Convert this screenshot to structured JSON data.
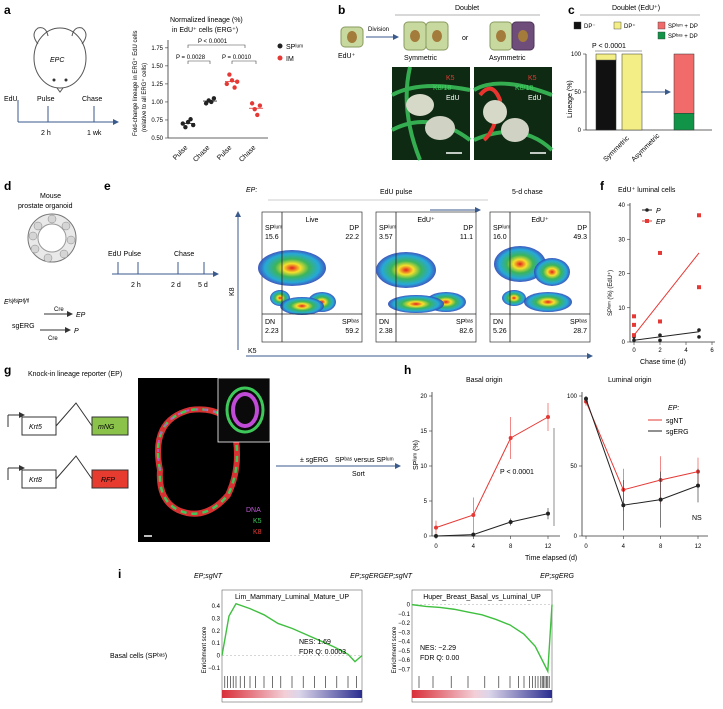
{
  "panels": {
    "a": {
      "label": "a",
      "schematic": {
        "mouse_label": "EPC",
        "timeline": [
          "EdU",
          "Pulse",
          "Chase"
        ],
        "times": [
          "2 h",
          "1 wk"
        ]
      },
      "chart_title": "Normalized lineage (%)",
      "chart_subtitle": "in EdU⁺ cells (ERG⁺)",
      "ylabel": "Fold-change lineage in ERG⁺ EdU cells",
      "ylabel2": "(relative to all ERG⁺ cells)",
      "pvals": [
        "P < 0.0001",
        "P = 0.0028",
        "P = 0.0010"
      ],
      "legend": [
        "SPˡᵘᵐ",
        "IM"
      ],
      "ticks": [
        "0.50",
        "0.75",
        "1.00",
        "1.25",
        "1.50",
        "1.75"
      ]
    },
    "b": {
      "label": "b",
      "title": "Doublet",
      "division": "Division",
      "edu": "EdU⁺",
      "symmetric": "Symmetric",
      "or": "or",
      "asymmetric": "Asymmetric",
      "stain": [
        "K5",
        "K8/18",
        "EdU"
      ]
    },
    "c": {
      "label": "c",
      "title": "Doublet (EdU⁺)",
      "legend": [
        "DP⁻",
        "DP⁺",
        "SPˡᵘᵐ + DP",
        "SPᵇᵃˢ + DP"
      ],
      "pval": "P < 0.0001",
      "ylabel": "Lineage (%)",
      "ticks": [
        "0",
        "50",
        "100"
      ],
      "categories": [
        "Symmetric",
        "Asymmetric"
      ]
    },
    "d": {
      "label": "d",
      "title": "Mouse",
      "title2": "prostate organoid",
      "timeline": [
        "EdU Pulse",
        "Chase"
      ],
      "times": [
        "2 h",
        "2 d",
        "5 d"
      ],
      "genotype": "Eˡˢˡ/ˡˢˡPᶠˡ/ᶠˡ",
      "cre": "Cre",
      "ep": "EP",
      "sgerg": "sgERG",
      "p": "P"
    },
    "e": {
      "label": "e",
      "ep": "EP:",
      "pulse": "EdU pulse",
      "chase": "5-d chase",
      "xlabel": "K5",
      "ylabel": "K8",
      "plots": [
        {
          "title": "Live",
          "splum": "15.6",
          "dp": "22.2",
          "dn": "2.23",
          "spbas": "59.2"
        },
        {
          "title": "EdU⁺",
          "splum": "3.57",
          "dp": "11.1",
          "dn": "2.38",
          "spbas": "82.6"
        },
        {
          "title": "EdU⁺",
          "splum": "16.0",
          "dp": "49.3",
          "dn": "5.26",
          "spbas": "28.7"
        }
      ],
      "q_labels": {
        "splum": "SPˡᵘᵐ",
        "dp": "DP",
        "dn": "DN",
        "spbas": "SPᵇᵃˢ"
      }
    },
    "f": {
      "label": "f",
      "title": "EdU⁺ luminal cells",
      "legend": [
        "P",
        "EP"
      ],
      "ylabel": "SPˡᵘᵐ (%) (EdU⁺)",
      "xlabel": "Chase time (d)",
      "yticks": [
        "0",
        "10",
        "20",
        "30",
        "40"
      ],
      "xticks": [
        "0",
        "2",
        "4",
        "6"
      ]
    },
    "g": {
      "label": "g",
      "title": "Knock-in lineage reporter (EP)",
      "genes": [
        "Krt5",
        "mNG",
        "Krt8",
        "RFP"
      ],
      "stain": [
        "DNA",
        "K5",
        "K8"
      ],
      "arrow1": "± sgERG",
      "arrow2": "SPᵇᵃˢ versus SPˡᵘᵐ",
      "arrow3": "Sort"
    },
    "h": {
      "label": "h",
      "basal": "Basal origin",
      "luminal": "Luminal origin",
      "ylabel": "SPˡᵘᵐ (%)",
      "xlabel": "Time elapsed (d)",
      "pval": "P < 0.0001",
      "ns": "NS",
      "legend_title": "EP:",
      "legend": [
        "sgNT",
        "sgERG"
      ],
      "ticks_left": [
        "0",
        "5",
        "10",
        "15",
        "20"
      ],
      "ticks_right": [
        "0",
        "50",
        "100"
      ],
      "xticks": [
        "0",
        "4",
        "8",
        "12"
      ]
    },
    "i": {
      "label": "i",
      "row_label": "Basal cells (SPᵇᵃˢ)",
      "ylabel": "Enrichment score",
      "plots": [
        {
          "left": "EP;sgNT",
          "right": "EP;sgERG",
          "title": "Lim_Mammary_Luminal_Mature_UP",
          "nes": "NES: 1.69",
          "fdr": "FDR Q: 0.0003",
          "ticks": [
            "0.4",
            "0.3",
            "0.2",
            "0.1",
            "0",
            "−0.1"
          ]
        },
        {
          "left": "EP;sgNT",
          "right": "EP;sgERG",
          "title": "Huper_Breast_Basal_vs_Luminal_UP",
          "nes": "NES: −2.29",
          "fdr": "FDR Q: 0.00",
          "ticks": [
            "0",
            "−0.1",
            "−0.2",
            "−0.3",
            "−0.4",
            "−0.5",
            "−0.6",
            "−0.7"
          ]
        }
      ]
    }
  },
  "chart_data": [
    {
      "type": "scatter",
      "panel": "a",
      "title": "Normalized lineage (%)",
      "categories": [
        "Pulse",
        "Chase",
        "Pulse",
        "Chase"
      ],
      "ylim": [
        0.5,
        1.75
      ],
      "series": [
        {
          "name": "SPˡᵘᵐ",
          "color": "#222222",
          "groups": [
            0,
            1
          ],
          "values": [
            [
              0.7,
              0.65,
              0.72,
              0.76,
              0.68
            ],
            [
              0.98,
              1.02,
              1.0,
              1.05
            ]
          ]
        },
        {
          "name": "IM",
          "color": "#e53935",
          "groups": [
            2,
            3
          ],
          "values": [
            [
              1.25,
              1.38,
              1.3,
              1.2,
              1.28
            ],
            [
              0.98,
              0.9,
              0.82,
              0.95
            ]
          ]
        }
      ]
    },
    {
      "type": "bar",
      "panel": "c",
      "title": "Doublet (EdU⁺)",
      "categories": [
        "Symmetric",
        "Asymmetric",
        ""
      ],
      "ylim": [
        0,
        100
      ],
      "series": [
        {
          "name": "DP⁻",
          "color": "#111111",
          "values": [
            92,
            0,
            0
          ]
        },
        {
          "name": "DP⁺",
          "color": "#f3ee86",
          "values": [
            8,
            100,
            0
          ]
        },
        {
          "name": "SPᵇᵃˢ + DP",
          "color": "#119447",
          "values": [
            0,
            0,
            22
          ]
        },
        {
          "name": "SPˡᵘᵐ + DP",
          "color": "#f16b6b",
          "values": [
            0,
            0,
            78
          ]
        }
      ]
    },
    {
      "type": "scatter",
      "panel": "f",
      "title": "EdU⁺ luminal cells",
      "xlabel": "Chase time (d)",
      "xlim": [
        0,
        6
      ],
      "ylim": [
        0,
        40
      ],
      "series": [
        {
          "name": "P",
          "color": "#222222",
          "points": [
            [
              0,
              0.5
            ],
            [
              0,
              1.5
            ],
            [
              2,
              0.5
            ],
            [
              2,
              2
            ],
            [
              5,
              1.5
            ],
            [
              5,
              3.5
            ]
          ],
          "fit": [
            [
              0,
              0.5
            ],
            [
              5,
              3
            ]
          ]
        },
        {
          "name": "EP",
          "color": "#e53935",
          "points": [
            [
              0,
              2
            ],
            [
              0,
              5
            ],
            [
              0,
              7.5
            ],
            [
              2,
              6
            ],
            [
              2,
              26
            ],
            [
              5,
              16
            ],
            [
              5,
              37
            ]
          ],
          "fit": [
            [
              0,
              2
            ],
            [
              5,
              26
            ]
          ]
        }
      ]
    },
    {
      "type": "line",
      "panel": "h",
      "title": "Basal origin",
      "x": [
        0,
        4,
        8,
        12
      ],
      "ylim": [
        0,
        20
      ],
      "series": [
        {
          "name": "sgNT",
          "color": "#e53935",
          "values": [
            1.2,
            3.0,
            14.0,
            17.0
          ],
          "err": [
            1.0,
            2.5,
            3.0,
            2.0
          ]
        },
        {
          "name": "sgERG",
          "color": "#222222",
          "values": [
            0,
            0.2,
            2.0,
            3.2
          ],
          "err": [
            0.3,
            0.3,
            0.5,
            0.8
          ]
        }
      ]
    },
    {
      "type": "line",
      "panel": "h",
      "title": "Luminal origin",
      "x": [
        0,
        4,
        8,
        12
      ],
      "ylim": [
        0,
        100
      ],
      "series": [
        {
          "name": "sgNT",
          "color": "#e53935",
          "values": [
            96,
            33,
            40,
            46
          ],
          "err": [
            3,
            15,
            17,
            10
          ]
        },
        {
          "name": "sgERG",
          "color": "#222222",
          "values": [
            98,
            22,
            26,
            36
          ],
          "err": [
            3,
            18,
            20,
            12
          ]
        }
      ]
    },
    {
      "type": "line",
      "panel": "i",
      "title": "Lim_Mammary_Luminal_Mature_UP",
      "ylim": [
        -0.15,
        0.45
      ],
      "x": [
        0,
        0.05,
        0.1,
        0.2,
        0.3,
        0.4,
        0.5,
        0.6,
        0.7,
        0.8,
        0.9,
        0.95,
        1.0
      ],
      "values": [
        0,
        0.32,
        0.42,
        0.38,
        0.33,
        0.26,
        0.22,
        0.17,
        0.12,
        0.07,
        0.01,
        -0.05,
        0
      ]
    },
    {
      "type": "line",
      "panel": "i",
      "title": "Huper_Breast_Basal_vs_Luminal_UP",
      "ylim": [
        -0.75,
        0.05
      ],
      "x": [
        0,
        0.1,
        0.2,
        0.3,
        0.4,
        0.5,
        0.6,
        0.7,
        0.8,
        0.88,
        0.93,
        0.97,
        1.0
      ],
      "values": [
        0,
        -0.02,
        -0.03,
        -0.05,
        -0.08,
        -0.11,
        -0.16,
        -0.22,
        -0.32,
        -0.45,
        -0.6,
        -0.72,
        0
      ]
    }
  ]
}
